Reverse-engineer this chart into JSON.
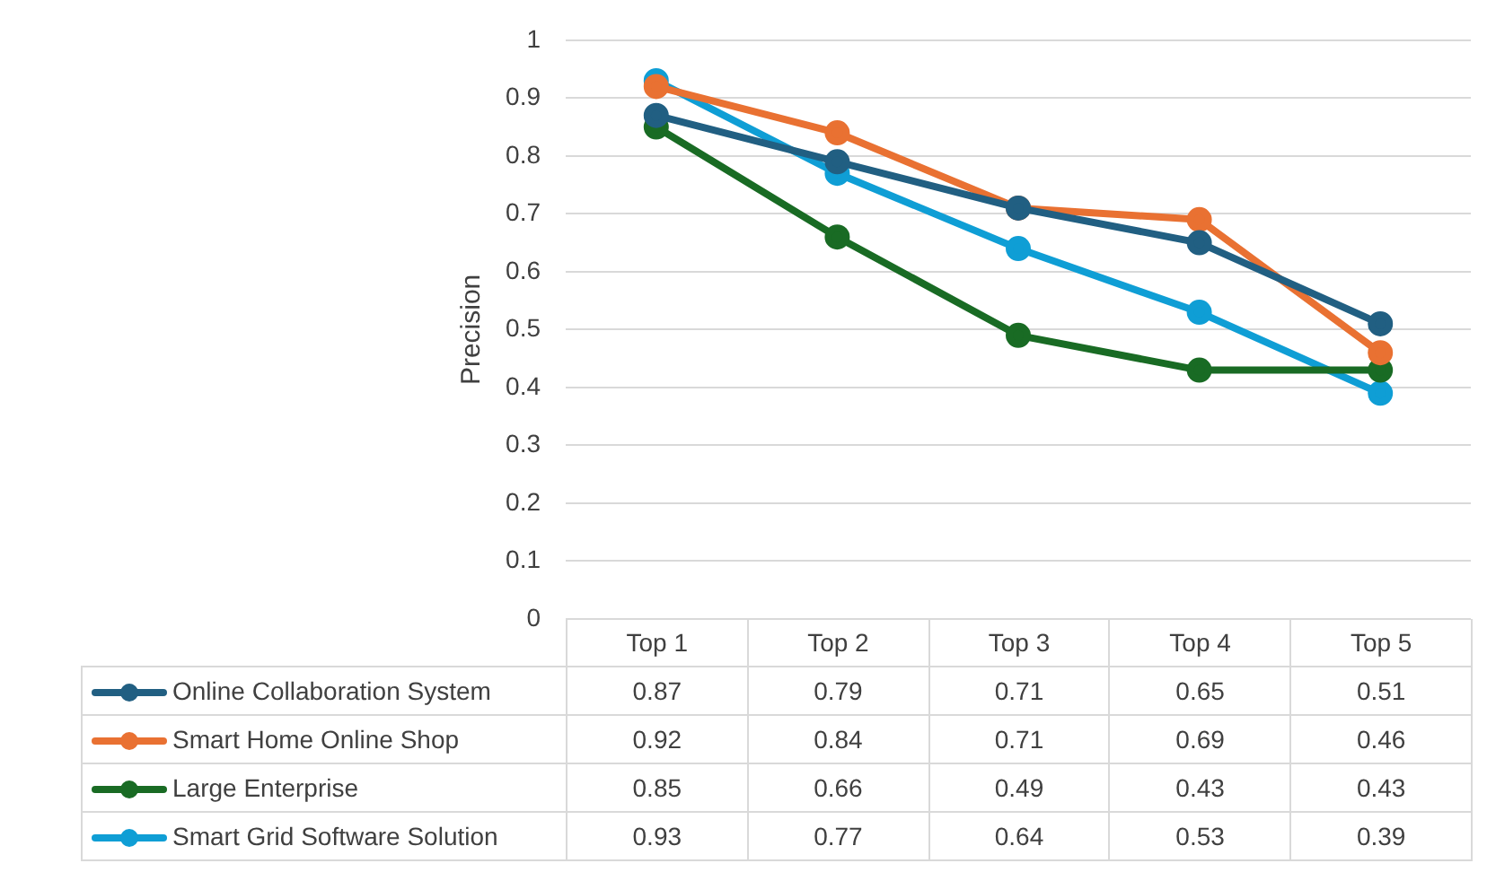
{
  "chart_data": {
    "type": "line",
    "ylabel": "Precision",
    "categories": [
      "Top 1",
      "Top 2",
      "Top 3",
      "Top 4",
      "Top 5"
    ],
    "series": [
      {
        "name": "Online Collaboration System",
        "color": "#215f82",
        "values": [
          0.87,
          0.79,
          0.71,
          0.65,
          0.51
        ]
      },
      {
        "name": "Smart Home Online Shop",
        "color": "#e97132",
        "values": [
          0.92,
          0.84,
          0.71,
          0.69,
          0.46
        ]
      },
      {
        "name": "Large Enterprise",
        "color": "#196b24",
        "values": [
          0.85,
          0.66,
          0.49,
          0.43,
          0.43
        ]
      },
      {
        "name": "Smart Grid Software Solution",
        "color": "#0f9ed5",
        "values": [
          0.93,
          0.77,
          0.64,
          0.53,
          0.39
        ]
      }
    ],
    "ylim": [
      0,
      1
    ],
    "yticks": [
      0,
      0.1,
      0.2,
      0.3,
      0.4,
      0.5,
      0.6,
      0.7,
      0.8,
      0.9,
      1
    ],
    "grid": "y",
    "marker": "circle",
    "line_style": "solid",
    "legend": "bottom",
    "data_labels": true
  }
}
